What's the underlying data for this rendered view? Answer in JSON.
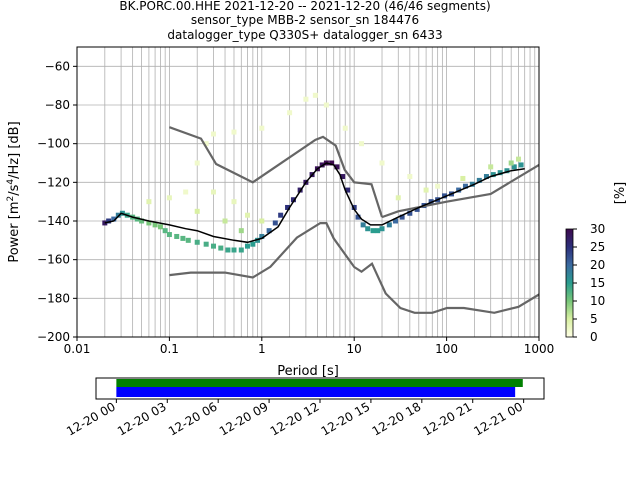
{
  "chart_data": [
    {
      "type": "heatmap",
      "title_lines": [
        "BK.PORC.00.HHE   2021-12-20 -- 2021-12-20  (46/46 segments)",
        "sensor_type MBB-2 sensor_sn 184476",
        "datalogger_type Q330S+ datalogger_sn 6433"
      ],
      "xlabel": "Period [s]",
      "ylabel_main": "Power [m",
      "ylabel_sup1": "2",
      "ylabel_mid": "/s",
      "ylabel_sup2": "4",
      "ylabel_end": "/Hz] [dB]",
      "xscale": "log",
      "xlim": [
        0.01,
        1000
      ],
      "ylim": [
        -200,
        -50
      ],
      "xticks": [
        0.01,
        0.1,
        1,
        10,
        100,
        1000
      ],
      "xtick_labels": [
        "0.01",
        "0.1",
        "1",
        "10",
        "100",
        "1000"
      ],
      "yticks": [
        -200,
        -180,
        -160,
        -140,
        -120,
        -100,
        -80,
        -60
      ],
      "ytick_labels": [
        "−200",
        "−180",
        "−160",
        "−140",
        "−120",
        "−100",
        "−80",
        "−60"
      ],
      "grid": true,
      "colorbar": {
        "label": "[%]",
        "min": 0,
        "max": 30,
        "ticks": [
          0,
          5,
          10,
          15,
          20,
          25,
          30
        ],
        "tick_labels": [
          "0",
          "5",
          "10",
          "15",
          "20",
          "25",
          "30"
        ],
        "colormap": [
          "#ffffe5",
          "#d9f0a3",
          "#78c679",
          "#2a9d8f",
          "#3b6aa0",
          "#2c2f7a",
          "#3d0a4e"
        ]
      },
      "mean_curve": {
        "x": [
          0.02,
          0.025,
          0.03,
          0.04,
          0.06,
          0.1,
          0.15,
          0.2,
          0.3,
          0.5,
          0.7,
          1,
          1.5,
          2,
          3,
          4,
          5,
          6,
          7,
          8,
          10,
          12,
          15,
          20,
          30,
          50,
          100,
          200,
          300,
          500,
          700
        ],
        "y": [
          -141,
          -140,
          -136,
          -138,
          -140,
          -142,
          -144,
          -145,
          -148,
          -150,
          -151,
          -149,
          -143,
          -133,
          -120,
          -113,
          -110,
          -111,
          -116,
          -124,
          -134,
          -139,
          -142,
          -142,
          -138,
          -133,
          -127,
          -121,
          -117,
          -114,
          -113
        ]
      },
      "noise_models": [
        {
          "name": "high",
          "x": [
            0.1,
            0.22,
            0.32,
            0.8,
            3.8,
            4.6,
            6.3,
            7.9,
            10,
            15.4,
            20
          ],
          "y": [
            -91.5,
            -97.4,
            -110.5,
            -120,
            -98,
            -96.5,
            -101,
            -113.5,
            -120,
            -121,
            -138
          ]
        },
        {
          "name": "high-long",
          "x": [
            20,
            30,
            100,
            300,
            1000
          ],
          "y": [
            -138,
            -135,
            -130,
            -126,
            -111
          ]
        },
        {
          "name": "low",
          "x": [
            0.1,
            0.17,
            0.4,
            0.8,
            1.24,
            2.4,
            4.3,
            5,
            6,
            10,
            12,
            15.6,
            21.9,
            31.6,
            45,
            70,
            101,
            154,
            328,
            600,
            1000
          ],
          "y": [
            -168,
            -166.7,
            -166.7,
            -169.2,
            -163.7,
            -148.6,
            -141.1,
            -141.1,
            -149,
            -163.8,
            -166.2,
            -162.1,
            -177.5,
            -185,
            -187.5,
            -187.5,
            -185,
            -185,
            -187.5,
            -184.4,
            -178
          ]
        }
      ],
      "ppsd_cells": [
        {
          "x": 0.02,
          "y": -141,
          "pct": 28
        },
        {
          "x": 0.022,
          "y": -140,
          "pct": 24
        },
        {
          "x": 0.025,
          "y": -139,
          "pct": 20
        },
        {
          "x": 0.028,
          "y": -137,
          "pct": 18
        },
        {
          "x": 0.031,
          "y": -136,
          "pct": 16
        },
        {
          "x": 0.035,
          "y": -137,
          "pct": 14
        },
        {
          "x": 0.04,
          "y": -138,
          "pct": 12
        },
        {
          "x": 0.045,
          "y": -139,
          "pct": 12
        },
        {
          "x": 0.05,
          "y": -140,
          "pct": 11
        },
        {
          "x": 0.06,
          "y": -141,
          "pct": 10
        },
        {
          "x": 0.07,
          "y": -142,
          "pct": 10
        },
        {
          "x": 0.08,
          "y": -143,
          "pct": 10
        },
        {
          "x": 0.09,
          "y": -145,
          "pct": 12
        },
        {
          "x": 0.1,
          "y": -147,
          "pct": 12
        },
        {
          "x": 0.12,
          "y": -148,
          "pct": 12
        },
        {
          "x": 0.14,
          "y": -149,
          "pct": 12
        },
        {
          "x": 0.16,
          "y": -150,
          "pct": 12
        },
        {
          "x": 0.2,
          "y": -151,
          "pct": 13
        },
        {
          "x": 0.25,
          "y": -152,
          "pct": 13
        },
        {
          "x": 0.3,
          "y": -153,
          "pct": 13
        },
        {
          "x": 0.36,
          "y": -154,
          "pct": 13
        },
        {
          "x": 0.43,
          "y": -155,
          "pct": 14
        },
        {
          "x": 0.5,
          "y": -155,
          "pct": 14
        },
        {
          "x": 0.6,
          "y": -155,
          "pct": 14
        },
        {
          "x": 0.7,
          "y": -153,
          "pct": 15
        },
        {
          "x": 0.8,
          "y": -152,
          "pct": 15
        },
        {
          "x": 0.9,
          "y": -150,
          "pct": 16
        },
        {
          "x": 1.0,
          "y": -148,
          "pct": 18
        },
        {
          "x": 1.2,
          "y": -145,
          "pct": 20
        },
        {
          "x": 1.4,
          "y": -141,
          "pct": 22
        },
        {
          "x": 1.6,
          "y": -137,
          "pct": 24
        },
        {
          "x": 1.9,
          "y": -133,
          "pct": 25
        },
        {
          "x": 2.2,
          "y": -129,
          "pct": 26
        },
        {
          "x": 2.6,
          "y": -124,
          "pct": 27
        },
        {
          "x": 3.0,
          "y": -120,
          "pct": 28
        },
        {
          "x": 3.5,
          "y": -116,
          "pct": 28
        },
        {
          "x": 4.0,
          "y": -113,
          "pct": 29
        },
        {
          "x": 4.5,
          "y": -111,
          "pct": 29
        },
        {
          "x": 5.0,
          "y": -110,
          "pct": 30
        },
        {
          "x": 5.7,
          "y": -110,
          "pct": 30
        },
        {
          "x": 6.5,
          "y": -112,
          "pct": 29
        },
        {
          "x": 7.5,
          "y": -117,
          "pct": 28
        },
        {
          "x": 8.5,
          "y": -124,
          "pct": 26
        },
        {
          "x": 10,
          "y": -133,
          "pct": 24
        },
        {
          "x": 11,
          "y": -138,
          "pct": 22
        },
        {
          "x": 12.5,
          "y": -142,
          "pct": 18
        },
        {
          "x": 14,
          "y": -144,
          "pct": 16
        },
        {
          "x": 16,
          "y": -145,
          "pct": 15
        },
        {
          "x": 18,
          "y": -145,
          "pct": 15
        },
        {
          "x": 20,
          "y": -144,
          "pct": 16
        },
        {
          "x": 24,
          "y": -142,
          "pct": 18
        },
        {
          "x": 28,
          "y": -140,
          "pct": 20
        },
        {
          "x": 33,
          "y": -138,
          "pct": 22
        },
        {
          "x": 40,
          "y": -136,
          "pct": 22
        },
        {
          "x": 48,
          "y": -134,
          "pct": 22
        },
        {
          "x": 57,
          "y": -132,
          "pct": 22
        },
        {
          "x": 68,
          "y": -130,
          "pct": 22
        },
        {
          "x": 80,
          "y": -129,
          "pct": 22
        },
        {
          "x": 95,
          "y": -127,
          "pct": 22
        },
        {
          "x": 113,
          "y": -126,
          "pct": 22
        },
        {
          "x": 135,
          "y": -124,
          "pct": 20
        },
        {
          "x": 160,
          "y": -122,
          "pct": 20
        },
        {
          "x": 190,
          "y": -121,
          "pct": 18
        },
        {
          "x": 226,
          "y": -119,
          "pct": 18
        },
        {
          "x": 270,
          "y": -117,
          "pct": 18
        },
        {
          "x": 320,
          "y": -116,
          "pct": 16
        },
        {
          "x": 380,
          "y": -115,
          "pct": 16
        },
        {
          "x": 450,
          "y": -114,
          "pct": 16
        },
        {
          "x": 540,
          "y": -112,
          "pct": 16
        },
        {
          "x": 640,
          "y": -111,
          "pct": 16
        },
        {
          "x": 0.15,
          "y": -125,
          "pct": 2
        },
        {
          "x": 0.2,
          "y": -110,
          "pct": 2
        },
        {
          "x": 0.25,
          "y": -100,
          "pct": 2
        },
        {
          "x": 0.3,
          "y": -95,
          "pct": 2
        },
        {
          "x": 0.5,
          "y": -94,
          "pct": 2
        },
        {
          "x": 1.0,
          "y": -92,
          "pct": 2
        },
        {
          "x": 2.0,
          "y": -84,
          "pct": 2
        },
        {
          "x": 3.0,
          "y": -77,
          "pct": 2
        },
        {
          "x": 3.8,
          "y": -75,
          "pct": 2
        },
        {
          "x": 5.0,
          "y": -80,
          "pct": 2
        },
        {
          "x": 8.0,
          "y": -92,
          "pct": 2
        },
        {
          "x": 12,
          "y": -100,
          "pct": 2
        },
        {
          "x": 20,
          "y": -110,
          "pct": 2
        },
        {
          "x": 40,
          "y": -117,
          "pct": 2
        },
        {
          "x": 80,
          "y": -122,
          "pct": 2
        },
        {
          "x": 0.3,
          "y": -125,
          "pct": 3
        },
        {
          "x": 0.5,
          "y": -130,
          "pct": 3
        },
        {
          "x": 0.7,
          "y": -137,
          "pct": 4
        },
        {
          "x": 0.1,
          "y": -128,
          "pct": 3
        },
        {
          "x": 0.06,
          "y": -130,
          "pct": 4
        },
        {
          "x": 0.2,
          "y": -135,
          "pct": 5
        },
        {
          "x": 0.4,
          "y": -140,
          "pct": 6
        },
        {
          "x": 0.6,
          "y": -145,
          "pct": 8
        },
        {
          "x": 1.0,
          "y": -140,
          "pct": 5
        },
        {
          "x": 30,
          "y": -128,
          "pct": 4
        },
        {
          "x": 60,
          "y": -124,
          "pct": 4
        },
        {
          "x": 150,
          "y": -118,
          "pct": 5
        },
        {
          "x": 300,
          "y": -112,
          "pct": 6
        },
        {
          "x": 500,
          "y": -110,
          "pct": 8
        },
        {
          "x": 600,
          "y": -108,
          "pct": 6
        }
      ]
    },
    {
      "type": "timeline",
      "xtick_labels": [
        "12-20 00",
        "12-20 03",
        "12-20 06",
        "12-20 09",
        "12-20 12",
        "12-20 15",
        "12-20 18",
        "12-20 21",
        "12-21 00"
      ],
      "xtick_hours": [
        0,
        3,
        6,
        9,
        12,
        15,
        18,
        21,
        24
      ],
      "xlim_hours": [
        -1.2,
        25.2
      ],
      "bars": [
        {
          "start_hour": 0,
          "end_hour": 23.95,
          "color": "#008000"
        },
        {
          "start_hour": 0,
          "end_hour": 23.5,
          "color": "#0000ff"
        }
      ]
    }
  ]
}
